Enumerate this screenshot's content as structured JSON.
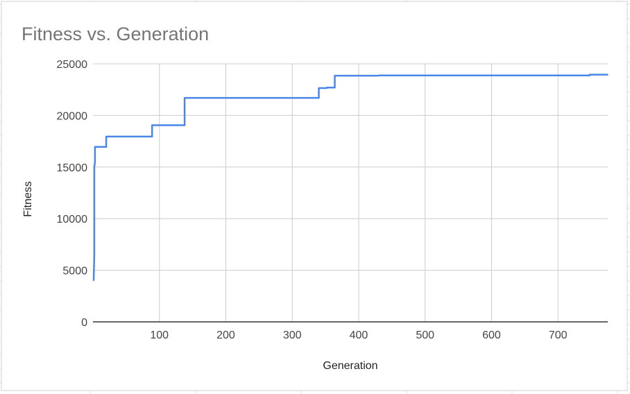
{
  "chart_data": {
    "type": "line",
    "title": "Fitness vs. Generation",
    "xlabel": "Generation",
    "ylabel": "Fitness",
    "xlim": [
      0,
      775
    ],
    "ylim": [
      0,
      25000
    ],
    "x_ticks": [
      100,
      200,
      300,
      400,
      500,
      600,
      700
    ],
    "y_ticks": [
      0,
      5000,
      10000,
      15000,
      20000,
      25000
    ],
    "grid": true,
    "line_color": "#4a86e8",
    "grid_color": "#cccccc",
    "axis_color": "#333333",
    "series": [
      {
        "x": [
          1,
          2,
          2,
          3,
          3,
          20,
          20,
          89,
          89,
          138,
          138,
          340,
          340,
          352,
          352,
          364,
          364,
          430,
          430,
          748,
          748,
          775
        ],
        "y": [
          4000,
          6500,
          15000,
          15500,
          16950,
          16950,
          17950,
          17950,
          19050,
          19050,
          21700,
          21700,
          22650,
          22650,
          22700,
          22700,
          23850,
          23850,
          23870,
          23870,
          23950,
          23950
        ]
      }
    ]
  }
}
